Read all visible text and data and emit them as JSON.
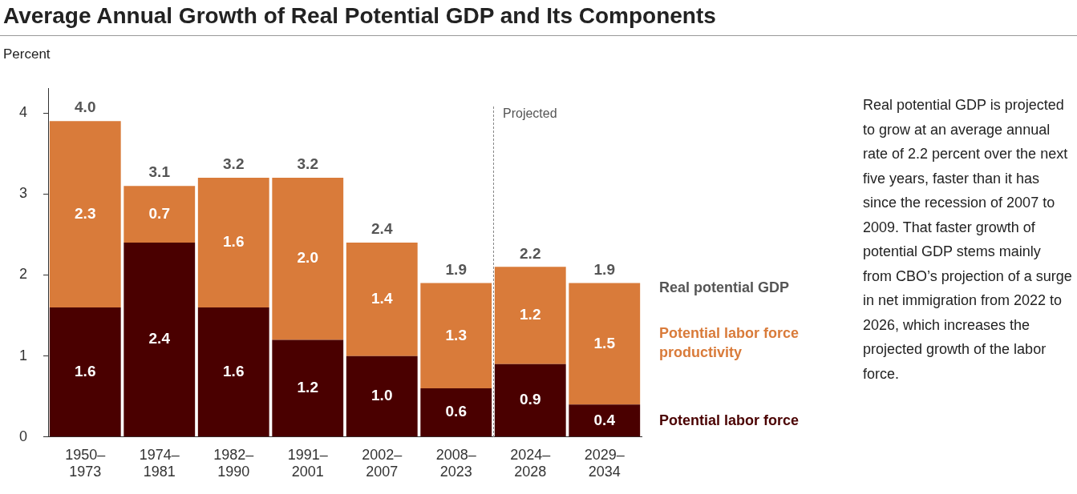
{
  "chart_data": {
    "type": "bar",
    "title": "Average Annual Growth of Real Potential GDP and Its Components",
    "ylabel": "Percent",
    "categories": [
      "1950–1973",
      "1974–1981",
      "1982–1990",
      "1991–2001",
      "2002–2007",
      "2008–2023",
      "2024–2028",
      "2029–2034"
    ],
    "stacked": true,
    "series": [
      {
        "name": "Potential labor force",
        "color": "#4a0000",
        "values": [
          1.6,
          2.4,
          1.6,
          1.2,
          1.0,
          0.6,
          0.9,
          0.4
        ],
        "value_labels": [
          "1.6",
          "2.4",
          "1.6",
          "1.2",
          "1.0",
          "0.6",
          "0.9",
          "0.4"
        ]
      },
      {
        "name": "Potential labor force productivity",
        "color": "#d97b3a",
        "values": [
          2.3,
          0.7,
          1.6,
          2.0,
          1.4,
          1.3,
          1.2,
          1.5
        ],
        "value_labels": [
          "2.3",
          "0.7",
          "1.6",
          "2.0",
          "1.4",
          "1.3",
          "1.2",
          "1.5"
        ]
      }
    ],
    "totals": [
      "4.0",
      "3.1",
      "3.2",
      "3.2",
      "2.4",
      "1.9",
      "2.2",
      "1.9"
    ],
    "ylim": [
      0,
      4.3
    ],
    "yticks": [
      0,
      1,
      2,
      3,
      4
    ],
    "grid": false,
    "legend": false,
    "annotations": [
      "Real potential GDP",
      "Projected",
      "Real potential GDP is projected to grow at an average annual rate of 2.2 percent over the next five years, faster than it has since the recession of 2007 to 2009. That faster growth of potential GDP stems mainly from CBO’s projection of a surge in net immigration from 2022 to 2026, which increases the projected growth of the labor force."
    ]
  }
}
